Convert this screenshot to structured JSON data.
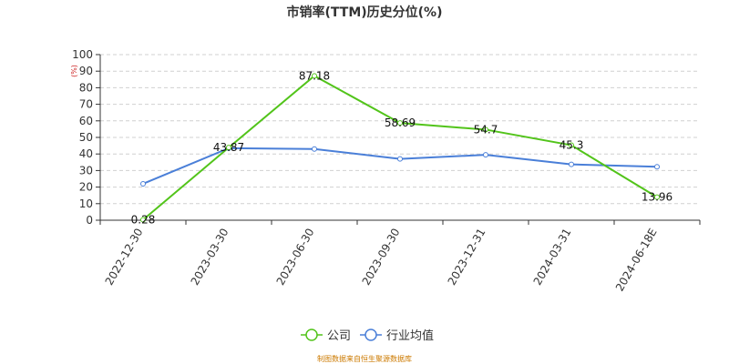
{
  "chart_data": {
    "type": "line",
    "title": "市销率(TTM)历史分位(%)",
    "unit_label": "(%)",
    "categories": [
      "2022-12-30",
      "2023-03-30",
      "2023-06-30",
      "2023-09-30",
      "2023-12-31",
      "2024-03-31",
      "2024-06-18E"
    ],
    "ylim": [
      0,
      100
    ],
    "yticks": [
      0,
      10,
      20,
      30,
      40,
      50,
      60,
      70,
      80,
      90,
      100
    ],
    "grid": true,
    "legend_position": "bottom-center",
    "series": [
      {
        "name": "公司",
        "color": "#52c41a",
        "values": [
          0.28,
          43.87,
          87.18,
          58.69,
          54.7,
          45.3,
          13.96
        ],
        "labels": [
          "0.28",
          "43.87",
          "87.18",
          "58.69",
          "54.7",
          "45.3",
          "13.96"
        ]
      },
      {
        "name": "行业均值",
        "color": "#4a7fd8",
        "values": [
          22,
          43.5,
          43,
          37,
          39.5,
          33.7,
          32.3
        ]
      }
    ]
  },
  "source_text": "制图数据来自恒生聚源数据库"
}
